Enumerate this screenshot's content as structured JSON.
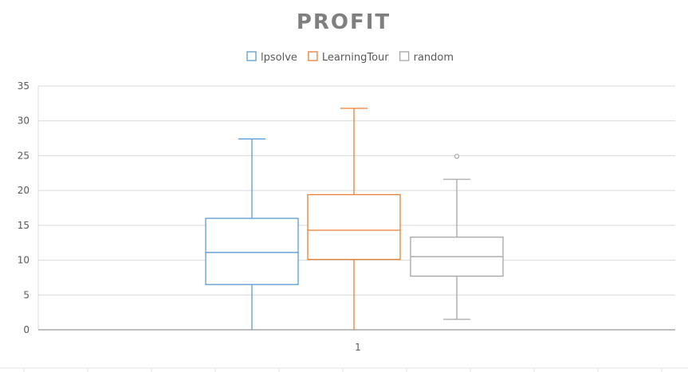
{
  "chart_data": {
    "type": "boxplot",
    "title": "PROFIT",
    "xlabel": "",
    "ylabel": "",
    "categories": [
      "1"
    ],
    "ylim": [
      0,
      35
    ],
    "yticks": [
      0,
      5,
      10,
      15,
      20,
      25,
      30,
      35
    ],
    "grid": true,
    "legend_position": "top",
    "series": [
      {
        "name": "lpsolve",
        "color": "#5b9bd5",
        "min": 0,
        "q1": 6.5,
        "median": 11.1,
        "q3": 16.0,
        "max": 27.4,
        "outliers": []
      },
      {
        "name": "LearningTour",
        "color": "#ed7d31",
        "min": 0,
        "q1": 10.1,
        "median": 14.3,
        "q3": 19.4,
        "max": 31.8,
        "outliers": []
      },
      {
        "name": "random",
        "color": "#a5a5a5",
        "min": 1.5,
        "q1": 7.7,
        "median": 10.5,
        "q3": 13.3,
        "max": 21.6,
        "outliers": [
          24.9
        ]
      }
    ]
  }
}
